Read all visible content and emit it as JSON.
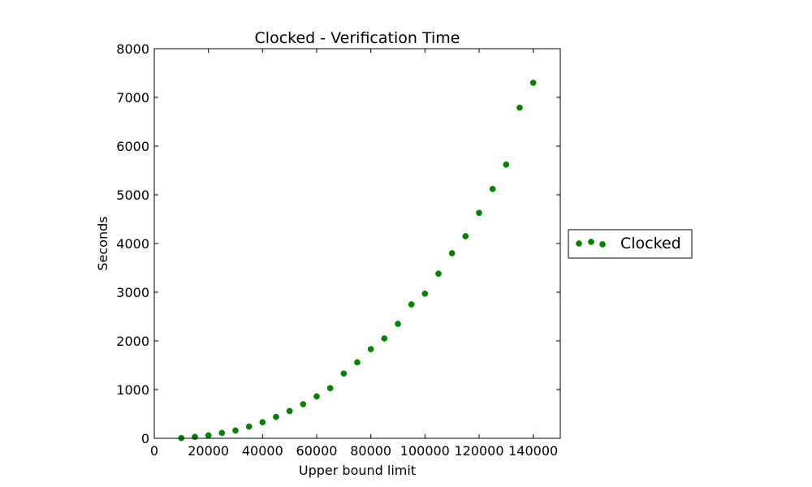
{
  "chart_data": {
    "type": "scatter",
    "title": "Clocked - Verification Time",
    "xlabel": "Upper bound limit",
    "ylabel": "Seconds",
    "xlim": [
      0,
      150000
    ],
    "ylim": [
      0,
      8000
    ],
    "xticks": [
      0,
      20000,
      40000,
      60000,
      80000,
      100000,
      120000,
      140000
    ],
    "xtick_labels": [
      "0",
      "20000",
      "40000",
      "60000",
      "80000",
      "100000",
      "120000",
      "140000"
    ],
    "yticks": [
      0,
      1000,
      2000,
      3000,
      4000,
      5000,
      6000,
      7000,
      8000
    ],
    "ytick_labels": [
      "0",
      "1000",
      "2000",
      "3000",
      "4000",
      "5000",
      "6000",
      "7000",
      "8000"
    ],
    "grid": false,
    "legend_position": "right-outside",
    "series": [
      {
        "name": "Clocked",
        "color": "#008000",
        "x": [
          10000,
          15000,
          20000,
          25000,
          30000,
          35000,
          40000,
          45000,
          50000,
          55000,
          60000,
          65000,
          70000,
          75000,
          80000,
          85000,
          90000,
          95000,
          100000,
          105000,
          110000,
          115000,
          120000,
          125000,
          130000,
          135000,
          140000
        ],
        "y": [
          5,
          30,
          60,
          110,
          160,
          240,
          330,
          440,
          560,
          700,
          860,
          1030,
          1330,
          1560,
          1830,
          2050,
          2350,
          2750,
          2970,
          3380,
          3800,
          4150,
          4630,
          5120,
          5620,
          6790,
          7300
        ]
      }
    ]
  }
}
